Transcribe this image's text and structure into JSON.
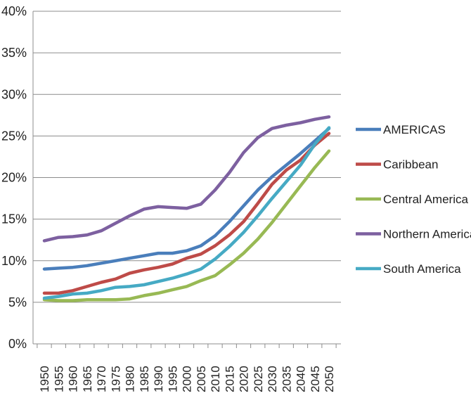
{
  "chart_data": {
    "type": "line",
    "x": [
      "1950",
      "1955",
      "1960",
      "1965",
      "1970",
      "1975",
      "1980",
      "1985",
      "1990",
      "1995",
      "2000",
      "2005",
      "2010",
      "2015",
      "2020",
      "2025",
      "2030",
      "2035",
      "2040",
      "2045",
      "2050"
    ],
    "ylim": [
      0,
      40
    ],
    "yticks": [
      "0%",
      "5%",
      "10%",
      "15%",
      "20%",
      "25%",
      "30%",
      "35%",
      "40%"
    ],
    "grid": "horizontal",
    "legend": "right",
    "series": [
      {
        "name": "AMERICAS",
        "color": "#4a7ebb",
        "values": [
          9.0,
          9.1,
          9.2,
          9.4,
          9.7,
          10.0,
          10.3,
          10.6,
          10.9,
          10.9,
          11.2,
          11.8,
          13.0,
          14.7,
          16.6,
          18.5,
          20.1,
          21.5,
          22.9,
          24.4,
          25.9
        ]
      },
      {
        "name": "Caribbean",
        "color": "#be4b48",
        "values": [
          6.1,
          6.1,
          6.4,
          6.9,
          7.4,
          7.8,
          8.5,
          8.9,
          9.2,
          9.6,
          10.3,
          10.8,
          11.8,
          13.1,
          14.7,
          16.9,
          19.2,
          20.9,
          22.1,
          23.9,
          25.3
        ]
      },
      {
        "name": "Central America",
        "color": "#98b954",
        "values": [
          5.3,
          5.2,
          5.2,
          5.3,
          5.3,
          5.3,
          5.4,
          5.8,
          6.1,
          6.5,
          6.9,
          7.6,
          8.2,
          9.5,
          10.9,
          12.6,
          14.6,
          16.8,
          19.0,
          21.2,
          23.2
        ]
      },
      {
        "name": "Northern America",
        "color": "#7d60a0",
        "values": [
          12.4,
          12.8,
          12.9,
          13.1,
          13.6,
          14.5,
          15.4,
          16.2,
          16.5,
          16.4,
          16.3,
          16.8,
          18.5,
          20.6,
          23.0,
          24.8,
          25.9,
          26.3,
          26.6,
          27.0,
          27.3
        ]
      },
      {
        "name": "South America",
        "color": "#46aac4",
        "values": [
          5.5,
          5.7,
          6.0,
          6.1,
          6.4,
          6.8,
          6.9,
          7.1,
          7.5,
          7.9,
          8.4,
          9.0,
          10.2,
          11.7,
          13.4,
          15.4,
          17.5,
          19.5,
          21.5,
          24.0,
          26.0
        ]
      }
    ]
  }
}
